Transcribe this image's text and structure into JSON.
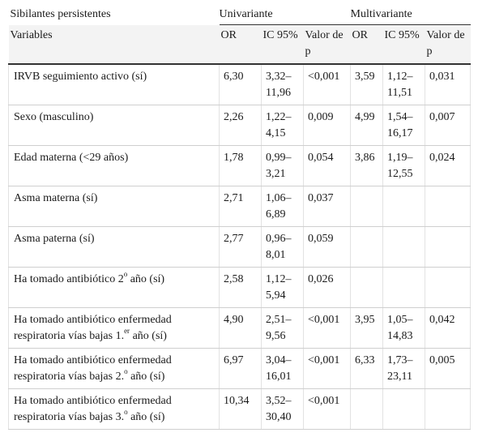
{
  "header": {
    "group_label": "Sibilantes persistentes",
    "univariante": "Univariante",
    "multivariante": "Multivariante",
    "col_variables": "Variables",
    "col_or": "OR",
    "col_ic": "IC 95%",
    "col_p_uni": "Valor de p",
    "col_or_multi": "OR",
    "col_ic_multi": "IC 95%",
    "col_p_multi": "Valor de p"
  },
  "rows": [
    {
      "variable": "IRVB seguimiento activo (sí)",
      "or_u": "6,30",
      "ic_u": "3,32–11,96",
      "p_u": "<0,001",
      "or_m": "3,59",
      "ic_m": "1,12–11,51",
      "p_m": "0,031"
    },
    {
      "variable": "Sexo (masculino)",
      "or_u": "2,26",
      "ic_u": "1,22–4,15",
      "p_u": "0,009",
      "or_m": "4,99",
      "ic_m": "1,54–16,17",
      "p_m": "0,007"
    },
    {
      "variable": "Edad materna (<29 años)",
      "or_u": "1,78",
      "ic_u": "0,99–3,21",
      "p_u": "0,054",
      "or_m": "3,86",
      "ic_m": "1,19–12,55",
      "p_m": "0,024"
    },
    {
      "variable": "Asma materna (sí)",
      "or_u": "2,71",
      "ic_u": "1,06–6,89",
      "p_u": "0,037",
      "or_m": "",
      "ic_m": "",
      "p_m": ""
    },
    {
      "variable": "Asma paterna (sí)",
      "or_u": "2,77",
      "ic_u": "0,96–8,01",
      "p_u": "0,059",
      "or_m": "",
      "ic_m": "",
      "p_m": ""
    },
    {
      "variable_pre": "Ha tomado antibiótico 2",
      "variable_sup": "o",
      "variable_post": " año (sí)",
      "or_u": "2,58",
      "ic_u": "1,12–5,94",
      "p_u": "0,026",
      "or_m": "",
      "ic_m": "",
      "p_m": ""
    },
    {
      "variable_line1": "Ha tomado antibiótico enfermedad",
      "variable_pre": "respiratoria vías bajas 1.",
      "variable_sup": "er",
      "variable_post": " año (sí)",
      "or_u": "4,90",
      "ic_u": "2,51–9,56",
      "p_u": "<0,001",
      "or_m": "3,95",
      "ic_m": "1,05–14,83",
      "p_m": "0,042"
    },
    {
      "variable_line1": "Ha tomado antibiótico enfermedad",
      "variable_pre": "respiratoria vías bajas 2.",
      "variable_sup": "o",
      "variable_post": " año (sí)",
      "or_u": "6,97",
      "ic_u": "3,04–16,01",
      "p_u": "<0,001",
      "or_m": "6,33",
      "ic_m": "1,73–23,11",
      "p_m": "0,005"
    },
    {
      "variable_line1": "Ha tomado antibiótico enfermedad",
      "variable_pre": "respiratoria vías bajas 3.",
      "variable_sup": "o",
      "variable_post": " año (sí)",
      "or_u": "10,34",
      "ic_u": "3,52–30,40",
      "p_u": "<0,001",
      "or_m": "",
      "ic_m": "",
      "p_m": ""
    }
  ]
}
